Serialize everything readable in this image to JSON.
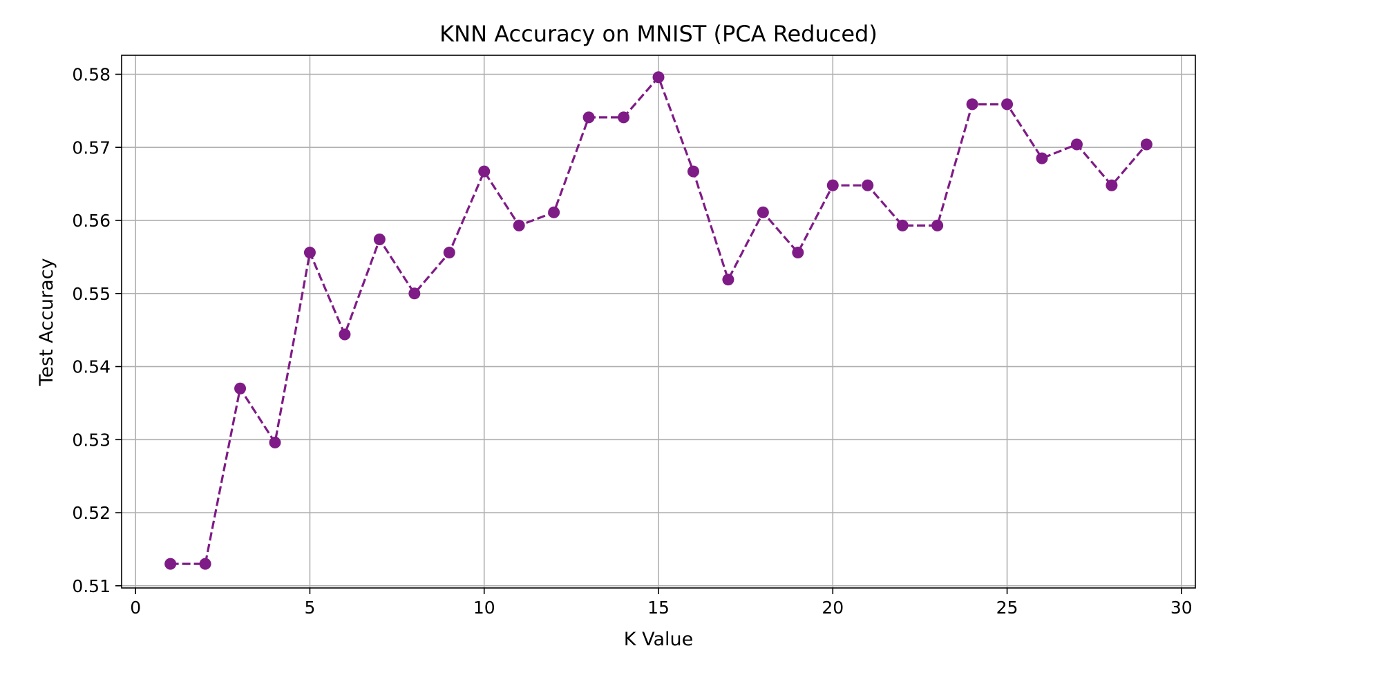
{
  "chart_data": {
    "type": "line",
    "title": "KNN Accuracy on MNIST (PCA Reduced)",
    "xlabel": "K Value",
    "ylabel": "Test Accuracy",
    "xlim": [
      -0.4,
      30.4
    ],
    "ylim": [
      0.5097,
      0.5826
    ],
    "xticks": [
      0,
      5,
      10,
      15,
      20,
      25,
      30
    ],
    "yticks": [
      0.51,
      0.52,
      0.53,
      0.54,
      0.55,
      0.56,
      0.57,
      0.58
    ],
    "xtick_labels": [
      "0",
      "5",
      "10",
      "15",
      "20",
      "25",
      "30"
    ],
    "ytick_labels": [
      "0.51",
      "0.52",
      "0.53",
      "0.54",
      "0.55",
      "0.56",
      "0.57",
      "0.58"
    ],
    "grid": true,
    "legend": "none",
    "series": [
      {
        "color": "#7f1b86",
        "line_style": "dashed",
        "marker": "circle",
        "x": [
          1,
          2,
          3,
          4,
          5,
          6,
          7,
          8,
          9,
          10,
          11,
          12,
          13,
          14,
          15,
          16,
          17,
          18,
          19,
          20,
          21,
          22,
          23,
          24,
          25,
          26,
          27,
          28,
          29
        ],
        "values": [
          0.513,
          0.513,
          0.537,
          0.5296,
          0.5556,
          0.5444,
          0.5574,
          0.55,
          0.5556,
          0.5667,
          0.5593,
          0.5611,
          0.5741,
          0.5741,
          0.5796,
          0.5667,
          0.5519,
          0.5611,
          0.5556,
          0.5648,
          0.5648,
          0.5593,
          0.5593,
          0.5759,
          0.5759,
          0.5685,
          0.5704,
          0.5648,
          0.5704
        ]
      }
    ]
  }
}
